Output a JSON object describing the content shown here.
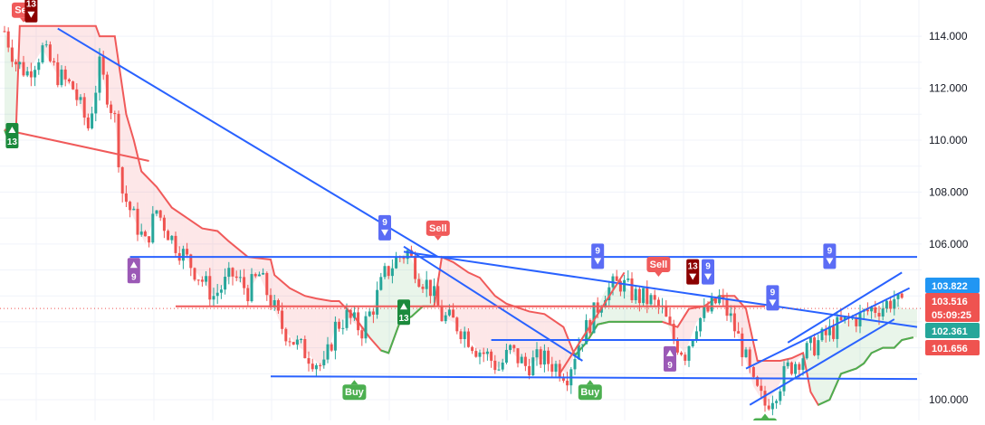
{
  "chart_data": {
    "type": "candlestick",
    "ylim": [
      99.2,
      115.4
    ],
    "x_range": [
      0,
      240
    ],
    "yticks": [
      "114.000",
      "112.000",
      "110.000",
      "108.000",
      "106.000",
      "100.000"
    ],
    "grid": true,
    "colors": {
      "up": "#26a69a",
      "down": "#ef5350",
      "trend": "#2962ff",
      "stop_down": "#f05a5a",
      "stop_up": "#4caf50",
      "fill_down": "rgba(242,54,69,0.12)",
      "fill_up": "rgba(76,175,80,0.12)",
      "sell_tag": "#f05a5a",
      "buy_tag": "#4caf50",
      "count9_tag": "#5b6cf5",
      "count13_down_tag": "#8b0000",
      "count13_up_tag": "#1b8a3c",
      "count9_up_tag": "#9b59b6",
      "price_blue": "#2196f3",
      "price_red": "#ef5350",
      "price_green": "#26a69a"
    },
    "price_labels": [
      {
        "value": 103.822,
        "text": "103.822",
        "color": "price_blue"
      },
      {
        "value": 103.516,
        "text": "103.516",
        "color": "price_red",
        "countdown": "05:09:25"
      },
      {
        "value": 102.361,
        "text": "102.361",
        "color": "price_green"
      },
      {
        "value": 101.656,
        "text": "101.656",
        "color": "price_red"
      }
    ],
    "waypoints": [
      [
        0,
        114.2
      ],
      [
        3,
        113.0
      ],
      [
        6,
        112.6
      ],
      [
        10,
        113.5
      ],
      [
        14,
        112.5
      ],
      [
        18,
        112.0
      ],
      [
        22,
        110.5
      ],
      [
        25,
        112.8
      ],
      [
        29,
        110.8
      ],
      [
        31,
        108.0
      ],
      [
        34,
        107.0
      ],
      [
        37,
        106.0
      ],
      [
        40,
        107.3
      ],
      [
        44,
        106.2
      ],
      [
        47,
        105.6
      ],
      [
        51,
        104.8
      ],
      [
        55,
        104.0
      ],
      [
        60,
        104.8
      ],
      [
        64,
        104.2
      ],
      [
        67,
        104.8
      ],
      [
        70,
        103.8
      ],
      [
        73,
        102.8
      ],
      [
        77,
        102.1
      ],
      [
        81,
        101.6
      ],
      [
        84,
        101.2
      ],
      [
        87,
        102.8
      ],
      [
        90,
        103.2
      ],
      [
        94,
        102.7
      ],
      [
        97,
        103.6
      ],
      [
        100,
        104.8
      ],
      [
        103,
        105.4
      ],
      [
        106,
        105.7
      ],
      [
        109,
        104.8
      ],
      [
        112,
        104.3
      ],
      [
        115,
        103.2
      ],
      [
        118,
        103.0
      ],
      [
        121,
        102.6
      ],
      [
        124,
        102.0
      ],
      [
        127,
        101.7
      ],
      [
        130,
        101.2
      ],
      [
        133,
        101.9
      ],
      [
        137,
        101.3
      ],
      [
        141,
        101.6
      ],
      [
        145,
        101.3
      ],
      [
        148,
        101.0
      ],
      [
        151,
        102.2
      ],
      [
        154,
        103.0
      ],
      [
        158,
        104.2
      ],
      [
        162,
        104.5
      ],
      [
        166,
        104.0
      ],
      [
        170,
        103.8
      ],
      [
        173,
        103.4
      ],
      [
        176,
        102.3
      ],
      [
        179,
        101.8
      ],
      [
        182,
        103.0
      ],
      [
        185,
        103.4
      ],
      [
        188,
        103.9
      ],
      [
        191,
        103.1
      ],
      [
        194,
        102.0
      ],
      [
        197,
        100.5
      ],
      [
        200,
        99.8
      ],
      [
        203,
        100.4
      ],
      [
        206,
        101.2
      ],
      [
        209,
        101.6
      ],
      [
        213,
        102.1
      ],
      [
        217,
        102.6
      ],
      [
        221,
        103.0
      ],
      [
        225,
        103.2
      ],
      [
        228,
        103.5
      ],
      [
        231,
        103.6
      ],
      [
        234,
        103.9
      ],
      [
        236,
        103.5
      ]
    ],
    "stop_line": [
      [
        0,
        110.4
      ],
      [
        3,
        110.3
      ],
      [
        4,
        114.4
      ],
      [
        24,
        114.4
      ],
      [
        25,
        114.0
      ],
      [
        29,
        114.0
      ],
      [
        30,
        113.0
      ],
      [
        32,
        111.0
      ],
      [
        34,
        110.0
      ],
      [
        36,
        108.8
      ],
      [
        40,
        108.2
      ],
      [
        44,
        107.4
      ],
      [
        48,
        107.0
      ],
      [
        52,
        106.6
      ],
      [
        56,
        106.5
      ],
      [
        59,
        106.1
      ],
      [
        64,
        105.5
      ],
      [
        70,
        105.4
      ],
      [
        71,
        104.8
      ],
      [
        75,
        104.3
      ],
      [
        79,
        104.0
      ],
      [
        82,
        103.9
      ],
      [
        86,
        103.8
      ],
      [
        88,
        103.8
      ],
      [
        92,
        103.2
      ],
      [
        96,
        102.4
      ],
      [
        99,
        101.9
      ],
      [
        101,
        101.8
      ],
      [
        104,
        103.0
      ],
      [
        107,
        103.2
      ],
      [
        110,
        103.6
      ],
      [
        113,
        103.6
      ],
      [
        115,
        105.5
      ],
      [
        118,
        105.3
      ],
      [
        122,
        104.9
      ],
      [
        125,
        104.7
      ],
      [
        129,
        104.0
      ],
      [
        132,
        103.7
      ],
      [
        138,
        103.4
      ],
      [
        142,
        103.3
      ],
      [
        147,
        102.8
      ],
      [
        150,
        101.7
      ],
      [
        153,
        102.2
      ],
      [
        156,
        102.9
      ],
      [
        159,
        103.0
      ],
      [
        162,
        103.0
      ],
      [
        166,
        103.0
      ],
      [
        170,
        103.0
      ],
      [
        173,
        103.0
      ],
      [
        177,
        102.8
      ],
      [
        180,
        103.5
      ],
      [
        184,
        103.6
      ],
      [
        188,
        104.0
      ],
      [
        192,
        104.0
      ],
      [
        195,
        103.5
      ],
      [
        198,
        101.5
      ],
      [
        204,
        101.5
      ],
      [
        207,
        101.6
      ],
      [
        210,
        101.8
      ],
      [
        212,
        100.3
      ],
      [
        214,
        99.8
      ],
      [
        217,
        100.0
      ],
      [
        220,
        101.0
      ],
      [
        224,
        101.2
      ],
      [
        226,
        101.4
      ],
      [
        228,
        101.8
      ],
      [
        231,
        102.0
      ],
      [
        234,
        102.0
      ],
      [
        236,
        102.3
      ],
      [
        239,
        102.4
      ]
    ],
    "stop_up_segments": [
      [
        [
          0,
          110.4
        ],
        [
          1,
          110.0
        ],
        [
          3,
          110.3
        ]
      ],
      [
        [
          99,
          101.9
        ],
        [
          101,
          101.8
        ],
        [
          104,
          103.0
        ],
        [
          107,
          103.2
        ],
        [
          110,
          103.6
        ],
        [
          113,
          103.6
        ]
      ],
      [
        [
          150,
          101.7
        ],
        [
          153,
          102.2
        ],
        [
          156,
          102.9
        ],
        [
          159,
          103.0
        ],
        [
          162,
          103.0
        ],
        [
          166,
          103.0
        ],
        [
          170,
          103.0
        ],
        [
          173,
          103.0
        ]
      ],
      [
        [
          214,
          99.8
        ],
        [
          217,
          100.0
        ],
        [
          220,
          101.0
        ],
        [
          224,
          101.2
        ],
        [
          226,
          101.4
        ],
        [
          228,
          101.8
        ],
        [
          231,
          102.0
        ],
        [
          234,
          102.0
        ],
        [
          236,
          102.3
        ],
        [
          239,
          102.4
        ]
      ]
    ],
    "trendlines": [
      {
        "color": "trend",
        "p1": [
          14,
          114.3
        ],
        "p2": [
          114,
          105.5
        ]
      },
      {
        "color": "trend",
        "p1": [
          105,
          105.9
        ],
        "p2": [
          152,
          101.5
        ]
      },
      {
        "color": "trend",
        "p1": [
          33,
          105.5
        ],
        "p2": [
          240,
          105.5
        ]
      },
      {
        "color": "trend",
        "p1": [
          105,
          105.7
        ],
        "p2": [
          240,
          102.8
        ]
      },
      {
        "color": "trend",
        "p1": [
          70,
          100.9
        ],
        "p2": [
          240,
          100.8
        ]
      },
      {
        "color": "trend",
        "p1": [
          128,
          102.3
        ],
        "p2": [
          198,
          102.3
        ]
      },
      {
        "color": "trend",
        "p1": [
          195,
          101.2
        ],
        "p2": [
          238,
          104.3
        ]
      },
      {
        "color": "trend",
        "p1": [
          196,
          99.8
        ],
        "p2": [
          234,
          103.1
        ]
      },
      {
        "color": "trend",
        "p1": [
          206,
          102.2
        ],
        "p2": [
          236,
          104.9
        ]
      },
      {
        "color": "stop_down",
        "p1": [
          0,
          110.4
        ],
        "p2": [
          38,
          109.2
        ]
      },
      {
        "color": "stop_down",
        "p1": [
          45,
          103.6
        ],
        "p2": [
          200,
          103.6
        ]
      },
      {
        "color": "stop_down",
        "p1": [
          146,
          101.0
        ],
        "p2": [
          163,
          104.9
        ]
      }
    ],
    "markers": [
      {
        "kind": "sell",
        "text": "Sell",
        "x": 5,
        "y": 114.4,
        "pos": "above"
      },
      {
        "kind": "sell",
        "text": "Sell",
        "x": 114,
        "y": 106.0,
        "pos": "above"
      },
      {
        "kind": "sell",
        "text": "Sell",
        "x": 172,
        "y": 104.6,
        "pos": "above"
      },
      {
        "kind": "buy",
        "text": "Buy",
        "x": 92,
        "y": 100.9,
        "pos": "below"
      },
      {
        "kind": "buy",
        "text": "Buy",
        "x": 154,
        "y": 100.9,
        "pos": "below"
      },
      {
        "kind": "buy",
        "text": "Buy",
        "x": 200,
        "y": 99.6,
        "pos": "below"
      },
      {
        "kind": "count9_down",
        "text": "9",
        "x": 100,
        "y": 106.0,
        "pos": "above"
      },
      {
        "kind": "count9_down",
        "text": "9",
        "x": 156,
        "y": 104.9,
        "pos": "above"
      },
      {
        "kind": "count9_down",
        "text": "9",
        "x": 185,
        "y": 104.3,
        "pos": "above"
      },
      {
        "kind": "count9_down",
        "text": "9",
        "x": 202,
        "y": 103.3,
        "pos": "above"
      },
      {
        "kind": "count9_down",
        "text": "9",
        "x": 217,
        "y": 104.9,
        "pos": "above"
      },
      {
        "kind": "count13_down",
        "text": "13",
        "x": 7,
        "y": 114.4,
        "pos": "above"
      },
      {
        "kind": "count13_down",
        "text": "13",
        "x": 181,
        "y": 104.3,
        "pos": "above"
      },
      {
        "kind": "count13_up",
        "text": "13",
        "x": 2,
        "y": 110.8,
        "pos": "below"
      },
      {
        "kind": "count13_up",
        "text": "13",
        "x": 105,
        "y": 104.0,
        "pos": "below"
      },
      {
        "kind": "count9_up",
        "text": "9",
        "x": 34,
        "y": 105.6,
        "pos": "below"
      },
      {
        "kind": "count9_up",
        "text": "9",
        "x": 175,
        "y": 102.2,
        "pos": "below"
      }
    ]
  }
}
